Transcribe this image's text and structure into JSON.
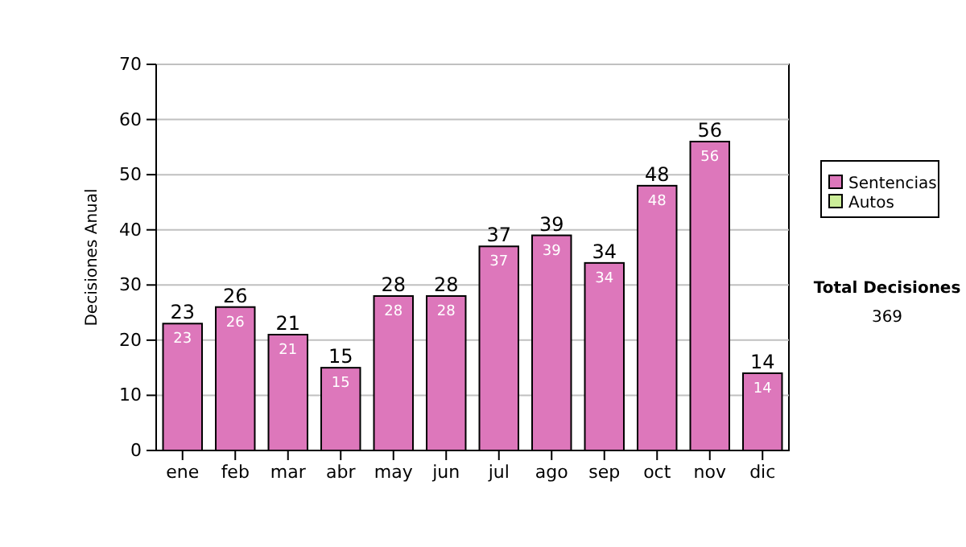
{
  "chart_data": {
    "type": "bar",
    "stacked": true,
    "ylabel": "Decisiones Anual",
    "categories": [
      "ene",
      "feb",
      "mar",
      "abr",
      "may",
      "jun",
      "jul",
      "ago",
      "sep",
      "oct",
      "nov",
      "dic"
    ],
    "series": [
      {
        "name": "Sentencias",
        "color": "#dd77bb",
        "values": [
          23,
          26,
          21,
          15,
          28,
          28,
          37,
          39,
          34,
          48,
          56,
          14
        ],
        "value_labels": [
          "23",
          "26",
          "21",
          "15",
          "28",
          "28",
          "37",
          "39",
          "34",
          "48",
          "56",
          "14"
        ]
      },
      {
        "name": "Autos",
        "color": "#ccee99",
        "values": [
          0,
          0,
          0,
          0,
          0,
          0,
          0,
          0,
          0,
          0,
          0,
          0
        ]
      }
    ],
    "totals": [
      "23",
      "26",
      "21",
      "15",
      "28",
      "28",
      "37",
      "39",
      "34",
      "48",
      "56",
      "14"
    ],
    "ylim": [
      0,
      70
    ],
    "yticks": [
      0,
      10,
      20,
      30,
      40,
      50,
      60,
      70
    ],
    "grid": "y",
    "legend": "right",
    "annotations": [
      "Total Decisiones",
      "369"
    ]
  }
}
